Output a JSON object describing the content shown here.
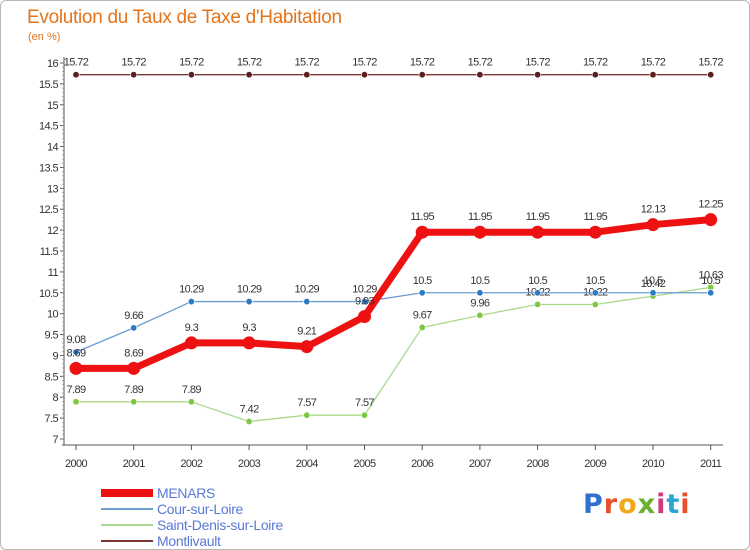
{
  "header": {
    "title": "Evolution du Taux de Taxe d'Habitation",
    "subtitle": "(en %)"
  },
  "logo": {
    "text": "Proxiti",
    "letter_colors": [
      "#2f6fce",
      "#e8502a",
      "#f1a81c",
      "#69b12e",
      "#d23a7a",
      "#2aa6d6",
      "#e8502a"
    ]
  },
  "chart_data": {
    "type": "line",
    "title": "Evolution du Taux de Taxe d'Habitation",
    "subtitle": "(en %)",
    "xlabel": "",
    "ylabel": "",
    "x": [
      "2000",
      "2001",
      "2002",
      "2003",
      "2004",
      "2005",
      "2006",
      "2007",
      "2008",
      "2009",
      "2010",
      "2011"
    ],
    "ylim": [
      7,
      16
    ],
    "yticks": [
      "7",
      "7.5",
      "8",
      "8.5",
      "9",
      "9.5",
      "10",
      "10.5",
      "11",
      "11.5",
      "12",
      "12.5",
      "13",
      "13.5",
      "14",
      "14.5",
      "15",
      "15.5",
      "16"
    ],
    "grid": false,
    "legend": "bottom-left",
    "series": [
      {
        "name": "Montlivault",
        "color": "#7a3535",
        "marker_color": "#5a1f1f",
        "line_width": 1.3,
        "values": [
          15.72,
          15.72,
          15.72,
          15.72,
          15.72,
          15.72,
          15.72,
          15.72,
          15.72,
          15.72,
          15.72,
          15.72
        ],
        "labels": [
          "15.72",
          "15.72",
          "15.72",
          "15.72",
          "15.72",
          "15.72",
          "15.72",
          "15.72",
          "15.72",
          "15.72",
          "15.72",
          "15.72"
        ]
      },
      {
        "name": "Saint-Denis-sur-Loire",
        "color": "#a9d98a",
        "marker_color": "#7dc742",
        "line_width": 1.3,
        "values": [
          7.89,
          7.89,
          7.89,
          7.42,
          7.57,
          7.57,
          9.67,
          9.96,
          10.22,
          10.22,
          10.42,
          10.63
        ],
        "labels": [
          "7.89",
          "7.89",
          "7.89",
          "7.42",
          "7.57",
          "7.57",
          "9.67",
          "9.96",
          "10.22",
          "10.22",
          "10.42",
          "10.63"
        ]
      },
      {
        "name": "Cour-sur-Loire",
        "color": "#6a9fd0",
        "marker_color": "#2e79c4",
        "line_width": 1.3,
        "values": [
          9.08,
          9.66,
          10.29,
          10.29,
          10.29,
          10.29,
          10.5,
          10.5,
          10.5,
          10.5,
          10.5,
          10.5
        ],
        "labels": [
          "9.08",
          "9.66",
          "10.29",
          "10.29",
          "10.29",
          "10.29",
          "10.5",
          "10.5",
          "10.5",
          "10.5",
          "10.5",
          "10.5"
        ]
      },
      {
        "name": "MENARS",
        "color": "#ee1111",
        "marker_color": "#ee1111",
        "line_width": 7,
        "values": [
          8.69,
          8.69,
          9.3,
          9.3,
          9.21,
          9.93,
          11.95,
          11.95,
          11.95,
          11.95,
          12.13,
          12.25
        ],
        "labels": [
          "8.69",
          "8.69",
          "9.3",
          "9.3",
          "9.21",
          "9.93",
          "11.95",
          "11.95",
          "11.95",
          "11.95",
          "12.13",
          "12.25"
        ]
      }
    ],
    "legend_order": [
      "MENARS",
      "Cour-sur-Loire",
      "Saint-Denis-sur-Loire",
      "Montlivault"
    ]
  }
}
